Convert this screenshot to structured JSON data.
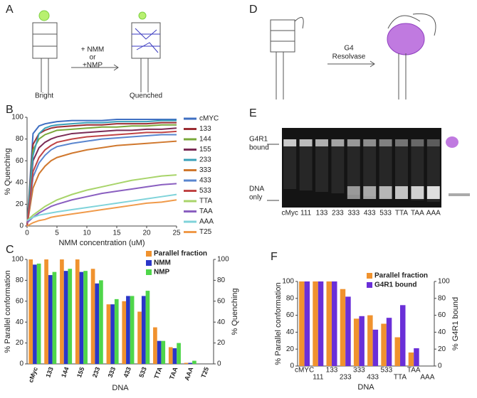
{
  "panels": {
    "labels": [
      "A",
      "B",
      "C",
      "D",
      "E",
      "F"
    ]
  },
  "diagram_a": {
    "treatment": [
      "+ NMM",
      "or",
      "+NMP"
    ],
    "left_label": "Bright",
    "right_label": "Quenched"
  },
  "diagram_d": {
    "enzyme": [
      "G4",
      "Resolvase"
    ]
  },
  "gel": {
    "upper_band": [
      "G4R1",
      "bound"
    ],
    "lower_band": [
      "DNA",
      "only"
    ],
    "lanes": [
      "cMyc",
      "111",
      "133",
      "233",
      "333",
      "433",
      "533",
      "TTA",
      "TAA",
      "AAA"
    ]
  },
  "chart_data": [
    {
      "type": "line",
      "x_label": "NMM concentration (uM)",
      "y_label": "% Quenching",
      "x": [
        0,
        1,
        2,
        3,
        4,
        5,
        7.5,
        10,
        12.5,
        15,
        17.5,
        20,
        22.5,
        25
      ],
      "xlim": [
        0,
        25
      ],
      "xticks": [
        0,
        5,
        10,
        15,
        20,
        25
      ],
      "ylim": [
        0,
        100
      ],
      "yticks": [
        0,
        20,
        40,
        60,
        80,
        100
      ],
      "legend": "right",
      "series": [
        {
          "name": "cMYC",
          "color": "#3f6fc2",
          "values": [
            0,
            85,
            92,
            94,
            95,
            96,
            97,
            97,
            97,
            98,
            98,
            98,
            98,
            98
          ]
        },
        {
          "name": "133",
          "color": "#9b2d33",
          "values": [
            0,
            75,
            85,
            88,
            90,
            91,
            92,
            93,
            93,
            94,
            94,
            94,
            95,
            95
          ]
        },
        {
          "name": "144",
          "color": "#7aa83a",
          "values": [
            0,
            70,
            80,
            84,
            86,
            88,
            89,
            90,
            91,
            91,
            92,
            92,
            93,
            93
          ]
        },
        {
          "name": "155",
          "color": "#7a2b55",
          "values": [
            0,
            60,
            72,
            77,
            80,
            82,
            85,
            86,
            87,
            88,
            88,
            89,
            89,
            90
          ]
        },
        {
          "name": "233",
          "color": "#3aa0b8",
          "values": [
            0,
            65,
            85,
            90,
            92,
            93,
            94,
            95,
            95,
            96,
            96,
            96,
            97,
            97
          ]
        },
        {
          "name": "333",
          "color": "#d0782e",
          "values": [
            0,
            35,
            48,
            55,
            60,
            63,
            67,
            70,
            72,
            74,
            75,
            76,
            77,
            78
          ]
        },
        {
          "name": "433",
          "color": "#5a86cf",
          "values": [
            0,
            45,
            58,
            65,
            70,
            73,
            76,
            78,
            80,
            81,
            82,
            83,
            84,
            84
          ]
        },
        {
          "name": "533",
          "color": "#c04545",
          "values": [
            0,
            50,
            63,
            70,
            74,
            77,
            80,
            82,
            83,
            84,
            85,
            86,
            86,
            87
          ]
        },
        {
          "name": "TTA",
          "color": "#a8d46a",
          "values": [
            5,
            10,
            14,
            18,
            21,
            24,
            29,
            33,
            36,
            39,
            42,
            44,
            46,
            47
          ]
        },
        {
          "name": "TAA",
          "color": "#8a5fc0",
          "values": [
            3,
            8,
            12,
            15,
            18,
            20,
            24,
            27,
            30,
            32,
            34,
            36,
            38,
            39
          ]
        },
        {
          "name": "AAA",
          "color": "#7fd3da",
          "values": [
            5,
            8,
            10,
            11,
            12,
            13,
            15,
            17,
            19,
            21,
            23,
            25,
            27,
            29
          ]
        },
        {
          "name": "T25",
          "color": "#f09a4a",
          "values": [
            0,
            3,
            5,
            6,
            8,
            9,
            11,
            13,
            15,
            17,
            19,
            21,
            22,
            24
          ]
        }
      ]
    },
    {
      "type": "bar",
      "x_label": "DNA",
      "y_label": "% Parallel conformation",
      "y2_label": "% Quenching",
      "categories": [
        "cMyc",
        "133",
        "144",
        "155",
        "233",
        "333",
        "433",
        "533",
        "TTA",
        "TAA",
        "AAA",
        "T25"
      ],
      "ylim": [
        0,
        100
      ],
      "yticks": [
        0,
        20,
        40,
        60,
        80,
        100
      ],
      "y2lim": [
        0,
        100
      ],
      "y2ticks": [
        0,
        20,
        40,
        60,
        80,
        100
      ],
      "legend": "upper right",
      "series": [
        {
          "name": "Parallel fraction",
          "color": "#f0922e",
          "values": [
            100,
            100,
            100,
            100,
            91,
            57,
            60,
            50,
            35,
            16,
            1,
            null
          ]
        },
        {
          "name": "NMM",
          "color": "#2a36c8",
          "axis": "y2",
          "values": [
            95,
            85,
            89,
            88,
            77,
            57,
            65,
            65,
            22,
            15,
            1,
            0
          ]
        },
        {
          "name": "NMP",
          "color": "#4fd64a",
          "axis": "y2",
          "values": [
            96,
            88,
            91,
            89,
            80,
            62,
            65,
            70,
            22,
            20,
            3,
            0
          ]
        }
      ]
    },
    {
      "type": "bar",
      "x_label": "DNA",
      "y_label": "% Parallel conformation",
      "y2_label": "% G4R1 bound",
      "categories": [
        "cMYC",
        "111",
        "133",
        "233",
        "333",
        "433",
        "533",
        "TTA",
        "TAA",
        "AAA"
      ],
      "ylim": [
        0,
        100
      ],
      "yticks": [
        0,
        20,
        40,
        60,
        80,
        100
      ],
      "y2lim": [
        0,
        100
      ],
      "y2ticks": [
        0,
        20,
        40,
        60,
        80,
        100
      ],
      "legend": "upper right",
      "series": [
        {
          "name": "Parallel fraction",
          "color": "#f0922e",
          "values": [
            100,
            100,
            100,
            91,
            56,
            60,
            50,
            34,
            16,
            null
          ]
        },
        {
          "name": "G4R1 bound",
          "color": "#6a2fd8",
          "axis": "y2",
          "values": [
            100,
            100,
            100,
            82,
            59,
            43,
            57,
            72,
            21,
            null
          ]
        }
      ]
    }
  ]
}
